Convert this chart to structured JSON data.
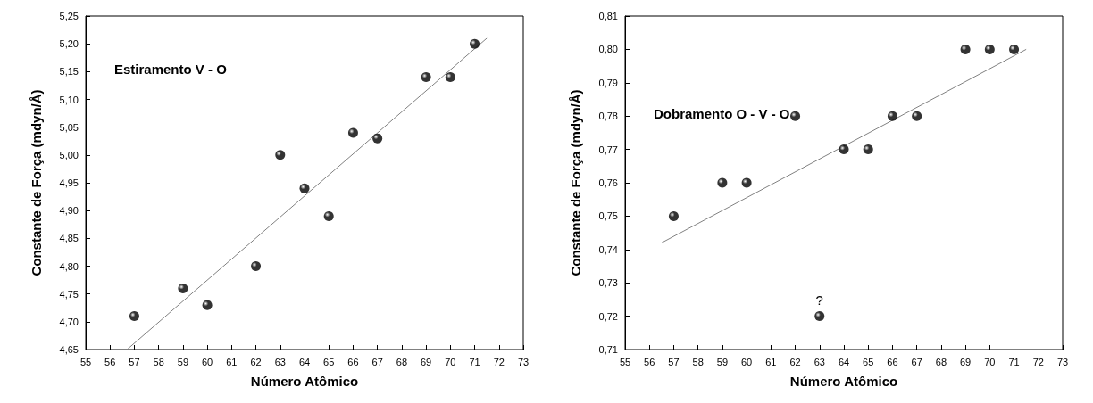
{
  "chart_data": [
    {
      "type": "scatter",
      "xlabel": "Número Atômico",
      "ylabel": "Constante de Força (mdyn/Å)",
      "annotations": [
        "Estiramento V - O"
      ],
      "x": [
        57,
        59,
        60,
        62,
        63,
        64,
        65,
        66,
        67,
        69,
        70,
        71
      ],
      "xlim": [
        55,
        73
      ],
      "xticks": [
        55,
        56,
        57,
        58,
        59,
        60,
        61,
        62,
        63,
        64,
        65,
        66,
        67,
        68,
        69,
        70,
        71,
        72,
        73
      ],
      "ylim": [
        4.65,
        5.25
      ],
      "yticks": [
        {
          "value": 4.65,
          "label": "4,65"
        },
        {
          "value": 4.7,
          "label": "4,70"
        },
        {
          "value": 4.75,
          "label": "4,75"
        },
        {
          "value": 4.8,
          "label": "4,80"
        },
        {
          "value": 4.85,
          "label": "4,85"
        },
        {
          "value": 4.9,
          "label": "4,90"
        },
        {
          "value": 4.95,
          "label": "4,95"
        },
        {
          "value": 5.0,
          "label": "5,00"
        },
        {
          "value": 5.05,
          "label": "5,05"
        },
        {
          "value": 5.1,
          "label": "5,10"
        },
        {
          "value": 5.15,
          "label": "5,15"
        },
        {
          "value": 5.2,
          "label": "5,20"
        },
        {
          "value": 5.25,
          "label": "5,25"
        }
      ],
      "grid": false,
      "series": [
        {
          "marker": "circle",
          "color": "#000000",
          "values": [
            4.71,
            4.76,
            4.73,
            4.8,
            5.0,
            4.94,
            4.89,
            5.04,
            5.03,
            5.14,
            5.14,
            5.2
          ]
        },
        {
          "type": "line",
          "marker": "none",
          "color": "#808080",
          "x": [
            56.7,
            71.5
          ],
          "values": [
            4.65,
            5.21
          ]
        }
      ]
    },
    {
      "type": "scatter",
      "xlabel": "Número Atômico",
      "ylabel": "Constante de Força (mdyn/Å)",
      "annotations": [
        "Dobramento O - V - O",
        {
          "text": "?",
          "x": 63,
          "y": 0.72
        }
      ],
      "x": [
        57,
        59,
        60,
        62,
        63,
        64,
        65,
        66,
        67,
        69,
        70,
        71
      ],
      "xlim": [
        55,
        73
      ],
      "xticks": [
        55,
        56,
        57,
        58,
        59,
        60,
        61,
        62,
        63,
        64,
        65,
        66,
        67,
        68,
        69,
        70,
        71,
        72,
        73
      ],
      "ylim": [
        0.71,
        0.81
      ],
      "yticks": [
        {
          "value": 0.71,
          "label": "0,71"
        },
        {
          "value": 0.72,
          "label": "0,72"
        },
        {
          "value": 0.73,
          "label": "0,73"
        },
        {
          "value": 0.74,
          "label": "0,74"
        },
        {
          "value": 0.75,
          "label": "0,75"
        },
        {
          "value": 0.76,
          "label": "0,76"
        },
        {
          "value": 0.77,
          "label": "0,77"
        },
        {
          "value": 0.78,
          "label": "0,78"
        },
        {
          "value": 0.79,
          "label": "0,79"
        },
        {
          "value": 0.8,
          "label": "0,80"
        },
        {
          "value": 0.81,
          "label": "0,81"
        }
      ],
      "grid": false,
      "series": [
        {
          "marker": "circle",
          "color": "#000000",
          "values": [
            0.75,
            0.76,
            0.76,
            0.78,
            0.72,
            0.77,
            0.77,
            0.78,
            0.78,
            0.8,
            0.8,
            0.8
          ]
        },
        {
          "type": "line",
          "marker": "none",
          "color": "#808080",
          "x": [
            56.5,
            71.5
          ],
          "values": [
            0.742,
            0.8
          ]
        }
      ]
    }
  ]
}
